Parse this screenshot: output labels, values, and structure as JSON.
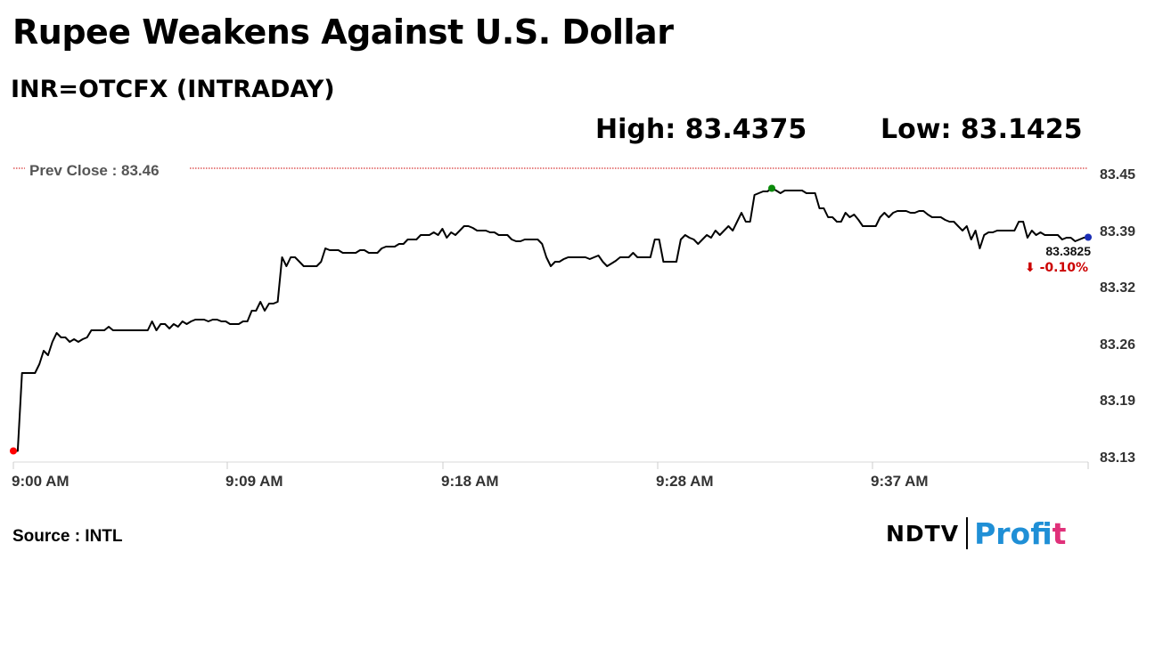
{
  "header": {
    "title": "Rupee Weakens Against U.S. Dollar",
    "subtitle": "INR=OTCFX (INTRADAY)",
    "high_text": "High: 83.4375",
    "low_text": "Low: 83.1425"
  },
  "footer": {
    "source": "Source : INTL",
    "logo_text": "NDTV",
    "logo_sub_a": "Prof",
    "logo_sub_b": "it"
  },
  "chart_data": {
    "type": "line",
    "title": "",
    "xlabel": "",
    "ylabel": "",
    "ylim": [
      83.13,
      83.46
    ],
    "x_ticks": [
      "9:00 AM",
      "9:09 AM",
      "9:18 AM",
      "9:28 AM",
      "9:37 AM"
    ],
    "y_ticks": [
      "83.45",
      "83.39",
      "83.32",
      "83.26",
      "83.19",
      "83.13"
    ],
    "y_tick_values": [
      83.45,
      83.39,
      83.32,
      83.26,
      83.19,
      83.13
    ],
    "reference_line": {
      "label": "Prev Close : 83.46",
      "value": 83.46,
      "color": "#cc0000"
    },
    "last_value_label": "83.3825",
    "change_label": "⬇ -0.10%",
    "colors": {
      "line": "#000000",
      "low_marker": "#ff0000",
      "high_marker": "#0a8a0a",
      "last_marker": "#1a2db5",
      "change": "#cc0000"
    },
    "series": [
      {
        "values": [
          83.1425,
          83.1425,
          83.23,
          83.23,
          83.23,
          83.23,
          83.24,
          83.255,
          83.25,
          83.265,
          83.275,
          83.27,
          83.27,
          83.265,
          83.268,
          83.265,
          83.268,
          83.27,
          83.278,
          83.278,
          83.278,
          83.278,
          83.282,
          83.278,
          83.278,
          83.278,
          83.278,
          83.278,
          83.278,
          83.278,
          83.278,
          83.278,
          83.288,
          83.278,
          83.285,
          83.285,
          83.28,
          83.285,
          83.282,
          83.288,
          83.285,
          83.288,
          83.29,
          83.29,
          83.29,
          83.288,
          83.29,
          83.29,
          83.288,
          83.288,
          83.285,
          83.285,
          83.285,
          83.288,
          83.288,
          83.3,
          83.3,
          83.31,
          83.3,
          83.308,
          83.308,
          83.31,
          83.36,
          83.35,
          83.36,
          83.36,
          83.355,
          83.35,
          83.35,
          83.35,
          83.35,
          83.355,
          83.37,
          83.368,
          83.368,
          83.368,
          83.365,
          83.365,
          83.365,
          83.365,
          83.368,
          83.368,
          83.365,
          83.365,
          83.365,
          83.37,
          83.372,
          83.372,
          83.372,
          83.375,
          83.375,
          83.38,
          83.38,
          83.38,
          83.385,
          83.385,
          83.385,
          83.388,
          83.385,
          83.392,
          83.382,
          83.388,
          83.385,
          83.39,
          83.395,
          83.395,
          83.393,
          83.39,
          83.39,
          83.39,
          83.388,
          83.388,
          83.385,
          83.385,
          83.385,
          83.38,
          83.378,
          83.378,
          83.38,
          83.38,
          83.38,
          83.38,
          83.375,
          83.36,
          83.35,
          83.355,
          83.355,
          83.358,
          83.36,
          83.36,
          83.36,
          83.36,
          83.36,
          83.358,
          83.36,
          83.362,
          83.355,
          83.35,
          83.353,
          83.356,
          83.36,
          83.36,
          83.36,
          83.365,
          83.36,
          83.36,
          83.36,
          83.36,
          83.38,
          83.38,
          83.355,
          83.355,
          83.355,
          83.355,
          83.38,
          83.385,
          83.382,
          83.38,
          83.375,
          83.38,
          83.385,
          83.382,
          83.39,
          83.385,
          83.39,
          83.395,
          83.39,
          83.4,
          83.41,
          83.4,
          83.4,
          83.43,
          83.432,
          83.434,
          83.434,
          83.4375,
          83.435,
          83.432,
          83.435,
          83.435,
          83.435,
          83.435,
          83.435,
          83.432,
          83.432,
          83.432,
          83.415,
          83.415,
          83.405,
          83.405,
          83.4,
          83.4,
          83.41,
          83.405,
          83.408,
          83.402,
          83.395,
          83.395,
          83.395,
          83.395,
          83.405,
          83.41,
          83.405,
          83.41,
          83.412,
          83.412,
          83.412,
          83.41,
          83.41,
          83.412,
          83.412,
          83.408,
          83.405,
          83.405,
          83.405,
          83.402,
          83.4,
          83.4,
          83.395,
          83.39,
          83.395,
          83.38,
          83.39,
          83.37,
          83.385,
          83.388,
          83.388,
          83.39,
          83.39,
          83.39,
          83.39,
          83.39,
          83.4,
          83.4,
          83.382,
          83.39,
          83.385,
          83.388,
          83.385,
          83.385,
          83.385,
          83.385,
          83.38,
          83.382,
          83.382,
          83.378,
          83.38,
          83.382,
          83.3825
        ]
      }
    ]
  }
}
